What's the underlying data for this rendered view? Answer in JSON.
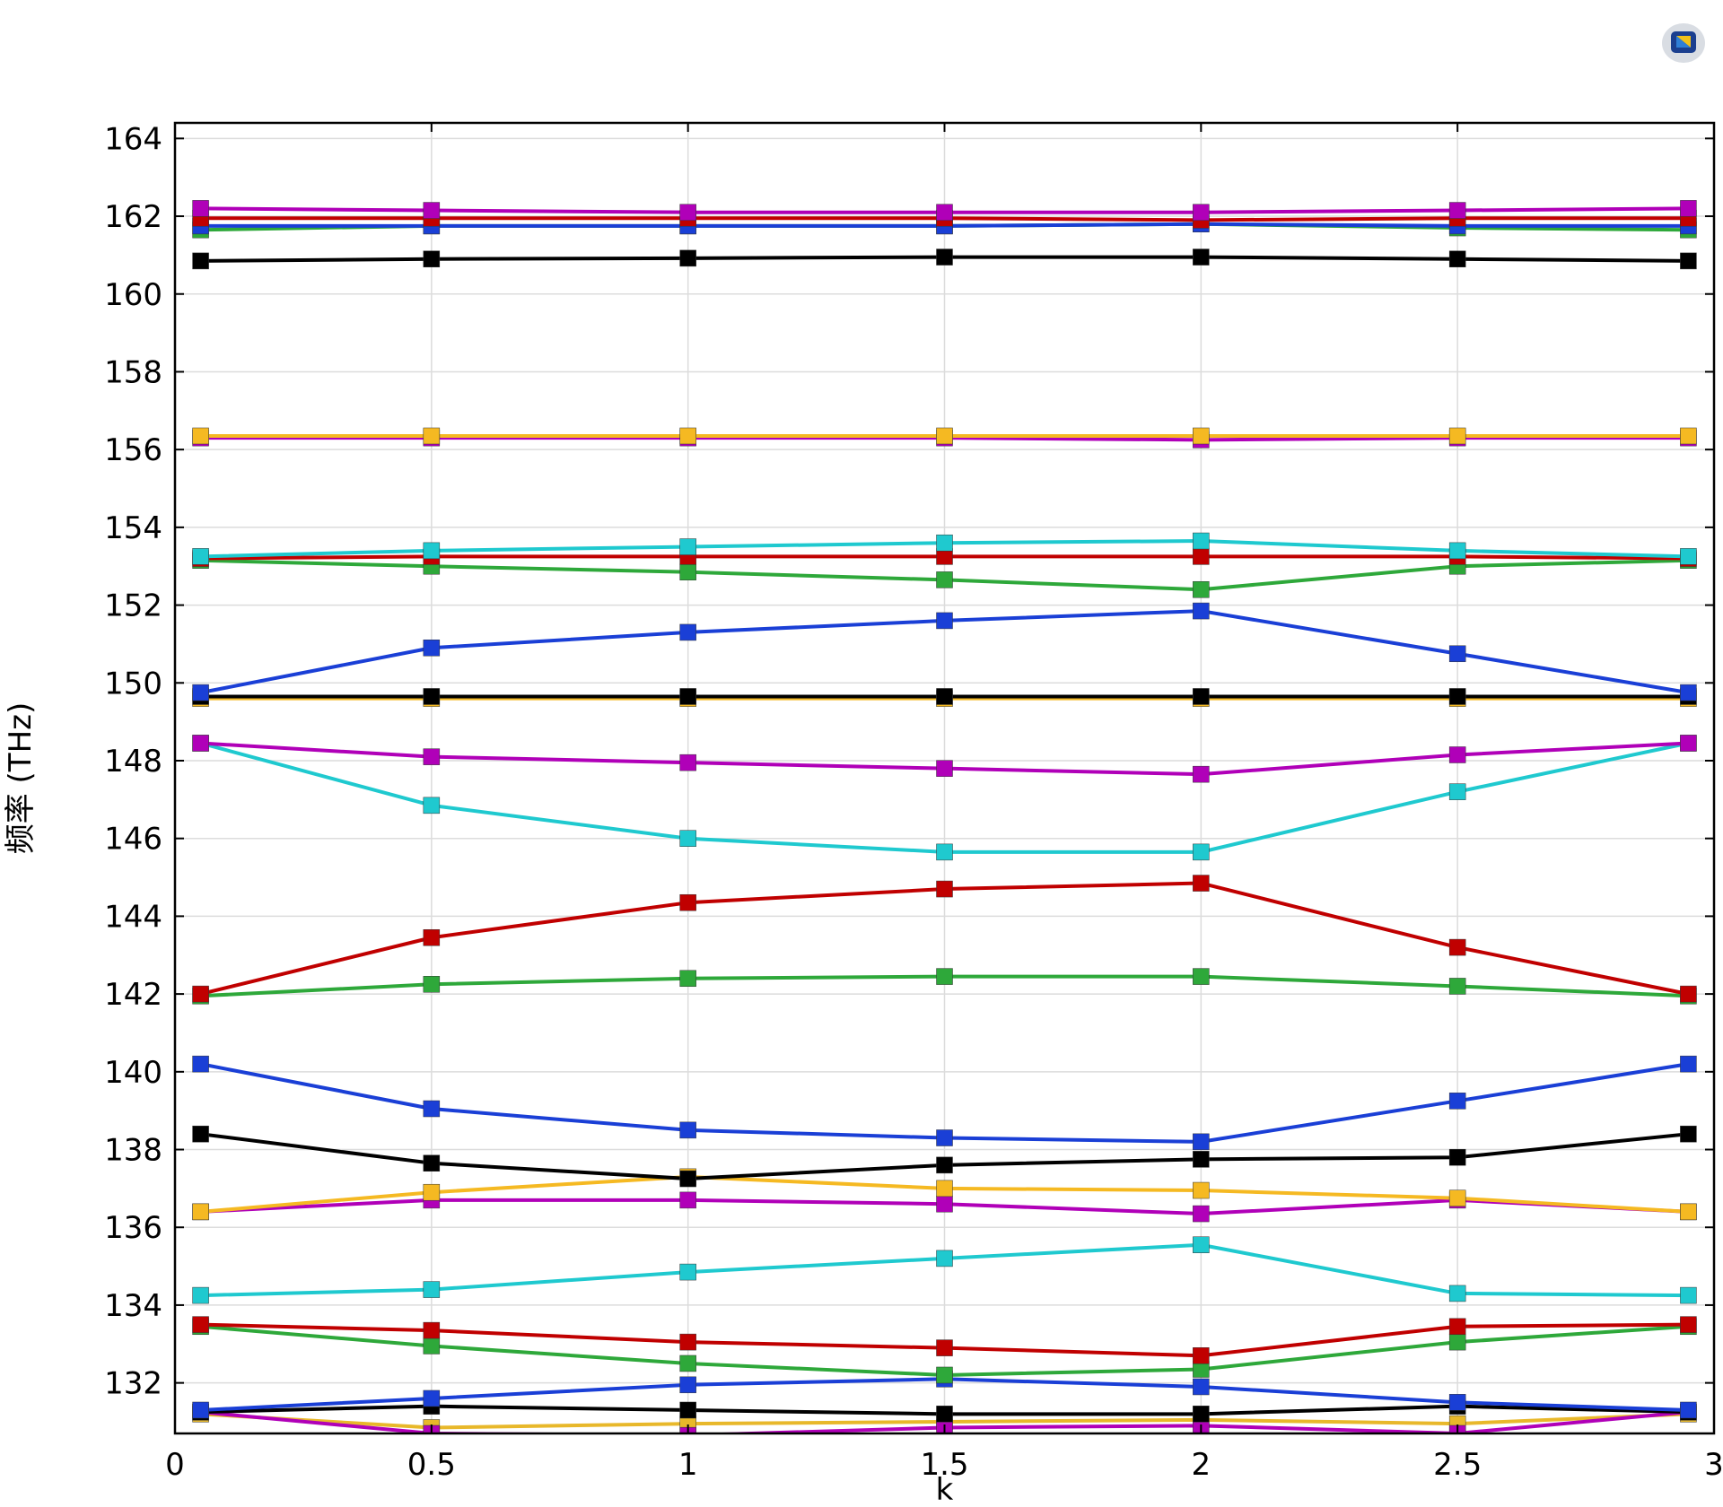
{
  "chart_data": {
    "type": "line",
    "xlabel": "k",
    "ylabel": "频率 (THz)",
    "xlim": [
      0,
      3
    ],
    "ylim": [
      130.7,
      164.4
    ],
    "xticks": [
      "0",
      "0.5",
      "1",
      "1.5",
      "2",
      "2.5",
      "3"
    ],
    "yticks": [
      "132",
      "134",
      "136",
      "138",
      "140",
      "142",
      "144",
      "146",
      "148",
      "150",
      "152",
      "154",
      "156",
      "158",
      "160",
      "162",
      "164"
    ],
    "grid": true,
    "marker": "square",
    "x": [
      0.05,
      0.5,
      1,
      1.5,
      2,
      2.5,
      2.95
    ],
    "series": [
      {
        "color": "#E8B82A",
        "values": [
          131.2,
          130.85,
          130.95,
          131.0,
          131.05,
          130.95,
          131.2
        ]
      },
      {
        "color": "#B000B8",
        "values": [
          131.25,
          130.7,
          130.65,
          130.85,
          130.9,
          130.7,
          131.25
        ]
      },
      {
        "color": "#000000",
        "values": [
          131.25,
          131.4,
          131.3,
          131.2,
          131.2,
          131.4,
          131.25
        ]
      },
      {
        "color": "#1A3FD6",
        "values": [
          131.3,
          131.6,
          131.95,
          132.1,
          131.9,
          131.5,
          131.3
        ]
      },
      {
        "color": "#2EA83A",
        "values": [
          133.45,
          132.95,
          132.5,
          132.2,
          132.35,
          133.05,
          133.45
        ]
      },
      {
        "color": "#C00000",
        "values": [
          133.5,
          133.35,
          133.05,
          132.9,
          132.7,
          133.45,
          133.5
        ]
      },
      {
        "color": "#1FC9CF",
        "values": [
          134.25,
          134.4,
          134.85,
          135.2,
          135.55,
          134.3,
          134.25
        ]
      },
      {
        "color": "#B000B8",
        "values": [
          136.4,
          136.7,
          136.7,
          136.6,
          136.35,
          136.7,
          136.4
        ]
      },
      {
        "color": "#F5B922",
        "values": [
          136.4,
          136.9,
          137.3,
          137.0,
          136.95,
          136.75,
          136.4
        ]
      },
      {
        "color": "#000000",
        "values": [
          138.4,
          137.65,
          137.25,
          137.6,
          137.75,
          137.8,
          138.4
        ]
      },
      {
        "color": "#1A3FD6",
        "values": [
          140.2,
          139.05,
          138.5,
          138.3,
          138.2,
          139.25,
          140.2
        ]
      },
      {
        "color": "#2EA83A",
        "values": [
          141.95,
          142.25,
          142.4,
          142.45,
          142.45,
          142.2,
          141.95
        ]
      },
      {
        "color": "#C00000",
        "values": [
          142.0,
          143.45,
          144.35,
          144.7,
          144.85,
          143.2,
          142.0
        ]
      },
      {
        "color": "#1FC9CF",
        "values": [
          148.45,
          146.85,
          146.0,
          145.65,
          145.65,
          147.2,
          148.45
        ]
      },
      {
        "color": "#B000B8",
        "values": [
          148.45,
          148.1,
          147.95,
          147.8,
          147.65,
          148.15,
          148.45
        ]
      },
      {
        "color": "#F5B922",
        "values": [
          149.6,
          149.6,
          149.6,
          149.6,
          149.6,
          149.6,
          149.6
        ]
      },
      {
        "color": "#000000",
        "values": [
          149.65,
          149.65,
          149.65,
          149.65,
          149.65,
          149.65,
          149.65
        ]
      },
      {
        "color": "#1A3FD6",
        "values": [
          149.75,
          150.9,
          151.3,
          151.6,
          151.85,
          150.75,
          149.75
        ]
      },
      {
        "color": "#2EA83A",
        "values": [
          153.15,
          153.0,
          152.85,
          152.65,
          152.4,
          153.0,
          153.15
        ]
      },
      {
        "color": "#C00000",
        "values": [
          153.2,
          153.25,
          153.25,
          153.25,
          153.25,
          153.25,
          153.2
        ]
      },
      {
        "color": "#1FC9CF",
        "values": [
          153.25,
          153.4,
          153.5,
          153.6,
          153.65,
          153.4,
          153.25
        ]
      },
      {
        "color": "#B000B8",
        "values": [
          156.3,
          156.3,
          156.3,
          156.3,
          156.25,
          156.3,
          156.3
        ]
      },
      {
        "color": "#F5B922",
        "values": [
          156.35,
          156.35,
          156.35,
          156.35,
          156.35,
          156.35,
          156.35
        ]
      },
      {
        "color": "#000000",
        "values": [
          160.85,
          160.9,
          160.92,
          160.95,
          160.95,
          160.9,
          160.85
        ]
      },
      {
        "color": "#2EA83A",
        "values": [
          161.65,
          161.75,
          161.75,
          161.75,
          161.8,
          161.7,
          161.65
        ]
      },
      {
        "color": "#1A3FD6",
        "values": [
          161.75,
          161.75,
          161.75,
          161.75,
          161.8,
          161.75,
          161.75
        ]
      },
      {
        "color": "#C00000",
        "values": [
          161.95,
          161.95,
          161.95,
          161.95,
          161.9,
          161.95,
          161.95
        ]
      },
      {
        "color": "#B000B8",
        "values": [
          162.2,
          162.15,
          162.1,
          162.1,
          162.1,
          162.15,
          162.2
        ]
      }
    ]
  },
  "icons": {
    "app_logo": "comsol-logo-icon"
  }
}
